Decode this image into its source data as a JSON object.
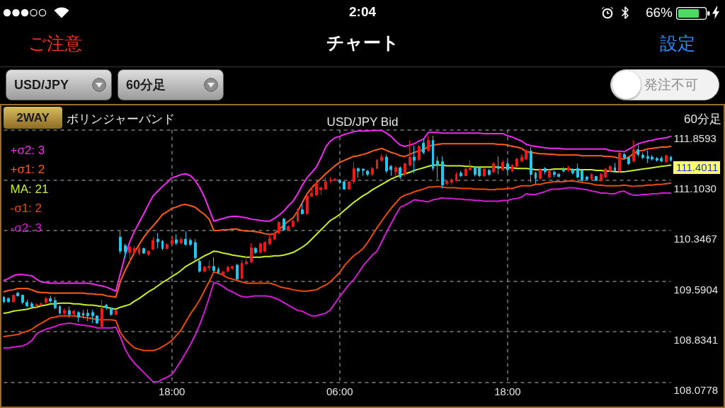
{
  "chart_data": {
    "type": "candlestick",
    "title": "USD/JPY Bid",
    "annotations": [
      "2:04",
      "66%",
      "ご注意",
      "チャート",
      "設定",
      "USD/JPY",
      "60分足",
      "発注不可",
      "2WAY",
      "ボリンジャーバンド",
      "60分足",
      "111.4011"
    ],
    "categories": [
      null,
      null,
      null,
      null,
      null,
      null,
      null,
      null,
      null,
      null,
      null,
      null,
      null,
      null,
      null,
      null,
      null,
      null,
      null,
      null,
      null,
      null,
      null,
      null,
      null,
      null,
      null,
      null,
      null,
      null,
      null,
      null,
      null,
      null,
      null,
      null,
      "18:00",
      null,
      null,
      null,
      null,
      null,
      null,
      null,
      null,
      null,
      null,
      null,
      null,
      null,
      null,
      null,
      null,
      null,
      null,
      null,
      null,
      null,
      null,
      null,
      null,
      null,
      null,
      null,
      null,
      null,
      null,
      null,
      null,
      null,
      null,
      null,
      "06:00",
      null,
      null,
      null,
      null,
      null,
      null,
      null,
      null,
      null,
      null,
      null,
      null,
      null,
      null,
      null,
      null,
      null,
      null,
      null,
      null,
      null,
      null,
      null,
      null,
      null,
      null,
      null,
      null,
      null,
      null,
      null,
      null,
      null,
      null,
      null,
      "18:00",
      null,
      null,
      null,
      null,
      null,
      null,
      null,
      null,
      null,
      null,
      null,
      null,
      null,
      null,
      null,
      null,
      null,
      null,
      null,
      null,
      null,
      null,
      null,
      null,
      null,
      null,
      null,
      null,
      null,
      null,
      null,
      null,
      null,
      null,
      null
    ],
    "ohlc": [
      [
        109.35,
        109.37,
        109.26,
        109.28
      ],
      [
        109.33,
        109.35,
        109.27,
        109.28
      ],
      [
        109.28,
        109.39,
        109.27,
        109.38
      ],
      [
        109.41,
        109.43,
        109.36,
        109.37
      ],
      [
        109.38,
        109.39,
        109.24,
        109.27
      ],
      [
        109.27,
        109.31,
        109.2,
        109.22
      ],
      [
        109.25,
        109.28,
        109.2,
        109.21
      ],
      [
        109.22,
        109.26,
        109.19,
        109.24
      ],
      [
        109.23,
        109.27,
        109.22,
        109.25
      ],
      [
        109.27,
        109.35,
        109.25,
        109.33
      ],
      [
        109.33,
        109.37,
        109.27,
        109.29
      ],
      [
        109.3,
        109.35,
        109.17,
        109.19
      ],
      [
        109.21,
        109.23,
        109.09,
        109.11
      ],
      [
        109.11,
        109.18,
        109.08,
        109.15
      ],
      [
        109.15,
        109.21,
        109.04,
        109.09
      ],
      [
        109.1,
        109.16,
        109.07,
        109.14
      ],
      [
        109.12,
        109.14,
        108.98,
        109.05
      ],
      [
        109.11,
        109.16,
        109.03,
        109.08
      ],
      [
        109.11,
        109.17,
        108.99,
        109.07
      ],
      [
        109.12,
        109.16,
        108.96,
        109.07
      ],
      [
        109.07,
        109.08,
        108.95,
        108.96
      ],
      [
        108.91,
        109.31,
        108.89,
        109.18
      ],
      [
        109.23,
        109.25,
        109.16,
        109.19
      ],
      [
        109.19,
        109.2,
        109.07,
        109.09
      ],
      [
        109.09,
        109.17,
        109.08,
        109.15
      ],
      [
        110.25,
        110.34,
        110.0,
        110.04
      ],
      [
        110.12,
        110.15,
        109.93,
        110.03
      ],
      [
        110.02,
        110.13,
        109.85,
        110.1
      ],
      [
        110.02,
        110.12,
        109.98,
        110.08
      ],
      [
        110.01,
        110.11,
        109.98,
        110.08
      ],
      [
        110.08,
        110.09,
        110.0,
        110.01
      ],
      [
        109.99,
        110.05,
        109.97,
        110.04
      ],
      [
        110.07,
        110.25,
        110.05,
        110.2
      ],
      [
        110.22,
        110.31,
        110.08,
        110.18
      ],
      [
        110.19,
        110.21,
        110.05,
        110.08
      ],
      [
        110.08,
        110.16,
        110.06,
        110.14
      ],
      [
        110.15,
        110.26,
        110.14,
        110.2
      ],
      [
        110.21,
        110.29,
        110.13,
        110.16
      ],
      [
        110.16,
        110.25,
        110.14,
        110.22
      ],
      [
        110.22,
        110.34,
        110.12,
        110.14
      ],
      [
        110.2,
        110.23,
        110.12,
        110.14
      ],
      [
        110.17,
        110.22,
        109.91,
        109.94
      ],
      [
        109.89,
        109.93,
        109.72,
        109.74
      ],
      [
        109.74,
        109.82,
        109.72,
        109.8
      ],
      [
        109.79,
        109.9,
        109.75,
        109.81
      ],
      [
        109.81,
        109.95,
        109.73,
        109.75
      ],
      [
        109.77,
        109.8,
        109.7,
        109.72
      ],
      [
        109.69,
        109.74,
        109.67,
        109.73
      ],
      [
        109.74,
        109.82,
        109.72,
        109.8
      ],
      [
        109.78,
        109.82,
        109.76,
        109.81
      ],
      [
        109.83,
        109.85,
        109.61,
        109.62
      ],
      [
        109.63,
        109.91,
        109.62,
        109.86
      ],
      [
        109.85,
        109.96,
        109.83,
        109.88
      ],
      [
        109.88,
        110.16,
        109.86,
        110.09
      ],
      [
        110.08,
        110.1,
        110.0,
        110.02
      ],
      [
        110.02,
        110.17,
        110.0,
        110.15
      ],
      [
        110.04,
        110.19,
        110.02,
        110.17
      ],
      [
        110.15,
        110.29,
        110.13,
        110.23
      ],
      [
        110.22,
        110.33,
        110.2,
        110.31
      ],
      [
        110.31,
        110.49,
        110.29,
        110.47
      ],
      [
        110.52,
        110.54,
        110.34,
        110.36
      ],
      [
        110.36,
        110.43,
        110.34,
        110.41
      ],
      [
        110.41,
        110.51,
        110.39,
        110.49
      ],
      [
        110.49,
        110.68,
        110.47,
        110.66
      ],
      [
        110.66,
        110.76,
        110.59,
        110.6
      ],
      [
        110.6,
        110.89,
        110.58,
        110.87
      ],
      [
        110.86,
        111.01,
        110.85,
        110.91
      ],
      [
        110.88,
        111.08,
        110.87,
        111.05
      ],
      [
        110.96,
        111.01,
        110.88,
        110.99
      ],
      [
        110.97,
        111.15,
        110.96,
        111.08
      ],
      [
        111.09,
        111.15,
        111.06,
        111.1
      ],
      [
        111.1,
        111.13,
        111.09,
        111.12
      ],
      [
        111.1,
        111.12,
        111.05,
        111.07
      ],
      [
        111.08,
        111.09,
        110.96,
        110.97
      ],
      [
        110.97,
        111.09,
        110.96,
        111.08
      ],
      [
        111.08,
        111.38,
        111.05,
        111.28
      ],
      [
        111.28,
        111.29,
        111.14,
        111.24
      ],
      [
        111.27,
        111.28,
        111.17,
        111.25
      ],
      [
        111.24,
        111.26,
        111.16,
        111.19
      ],
      [
        111.19,
        111.3,
        111.16,
        111.28
      ],
      [
        111.28,
        111.42,
        111.27,
        111.4
      ],
      [
        111.4,
        111.49,
        111.38,
        111.45
      ],
      [
        111.45,
        111.49,
        111.21,
        111.24
      ],
      [
        111.31,
        111.33,
        111.17,
        111.26
      ],
      [
        111.23,
        111.31,
        111.17,
        111.29
      ],
      [
        111.29,
        111.31,
        111.12,
        111.15
      ],
      [
        111.19,
        111.37,
        111.16,
        111.35
      ],
      [
        111.33,
        111.7,
        111.31,
        111.45
      ],
      [
        111.45,
        111.62,
        111.21,
        111.4
      ],
      [
        111.41,
        111.63,
        111.39,
        111.61
      ],
      [
        111.66,
        111.72,
        111.49,
        111.52
      ],
      [
        111.55,
        111.77,
        111.53,
        111.7
      ],
      [
        111.7,
        111.77,
        111.24,
        111.28
      ],
      [
        111.39,
        111.46,
        111.12,
        111.33
      ],
      [
        111.38,
        111.46,
        110.98,
        111.03
      ],
      [
        111.05,
        111.11,
        111.02,
        111.09
      ],
      [
        111.07,
        111.13,
        111.03,
        111.11
      ],
      [
        111.09,
        111.22,
        111.08,
        111.19
      ],
      [
        111.21,
        111.24,
        111.15,
        111.17
      ],
      [
        111.17,
        111.29,
        111.16,
        111.27
      ],
      [
        111.26,
        111.4,
        111.24,
        111.29
      ],
      [
        111.3,
        111.31,
        111.16,
        111.19
      ],
      [
        111.29,
        111.31,
        111.15,
        111.17
      ],
      [
        111.17,
        111.29,
        111.15,
        111.27
      ],
      [
        111.25,
        111.27,
        111.17,
        111.19
      ],
      [
        111.23,
        111.37,
        111.21,
        111.35
      ],
      [
        111.31,
        111.46,
        111.19,
        111.28
      ],
      [
        111.26,
        111.4,
        111.24,
        111.37
      ],
      [
        111.35,
        111.39,
        111.22,
        111.26
      ],
      [
        111.24,
        111.35,
        111.22,
        111.33
      ],
      [
        111.31,
        111.44,
        111.29,
        111.42
      ],
      [
        111.39,
        111.49,
        111.37,
        111.45
      ],
      [
        111.42,
        111.57,
        111.4,
        111.55
      ],
      [
        111.54,
        111.6,
        111.07,
        111.19
      ],
      [
        111.21,
        111.23,
        111.05,
        111.13
      ],
      [
        111.13,
        111.28,
        111.11,
        111.26
      ],
      [
        111.28,
        111.3,
        111.19,
        111.23
      ],
      [
        111.15,
        111.27,
        111.12,
        111.24
      ],
      [
        111.22,
        111.25,
        111.15,
        111.19
      ],
      [
        111.19,
        111.21,
        111.14,
        111.16
      ],
      [
        111.27,
        111.3,
        111.22,
        111.24
      ],
      [
        111.25,
        111.32,
        111.23,
        111.29
      ],
      [
        111.26,
        111.28,
        111.19,
        111.21
      ],
      [
        111.28,
        111.35,
        111.13,
        111.15
      ],
      [
        111.25,
        111.26,
        111.08,
        111.1
      ],
      [
        111.15,
        111.17,
        111.1,
        111.12
      ],
      [
        111.12,
        111.21,
        111.1,
        111.19
      ],
      [
        111.16,
        111.17,
        111.09,
        111.1
      ],
      [
        111.1,
        111.21,
        111.08,
        111.19
      ],
      [
        111.15,
        111.29,
        111.13,
        111.27
      ],
      [
        111.24,
        111.33,
        111.22,
        111.31
      ],
      [
        111.29,
        111.36,
        111.22,
        111.24
      ],
      [
        111.24,
        111.53,
        111.22,
        111.51
      ],
      [
        111.49,
        111.51,
        111.42,
        111.44
      ],
      [
        111.44,
        111.46,
        111.33,
        111.35
      ],
      [
        111.39,
        111.7,
        111.37,
        111.56
      ],
      [
        111.56,
        111.64,
        111.45,
        111.49
      ],
      [
        111.48,
        111.52,
        111.42,
        111.44
      ],
      [
        111.46,
        111.55,
        111.36,
        111.43
      ],
      [
        111.45,
        111.48,
        111.4,
        111.42
      ],
      [
        111.43,
        111.45,
        111.38,
        111.4
      ],
      [
        111.43,
        111.46,
        111.37,
        111.39
      ],
      [
        111.38,
        111.49,
        111.36,
        111.47
      ],
      [
        111.45,
        111.47,
        111.38,
        111.4
      ]
    ],
    "colors": [
      "#20c8f0",
      "#20c8f0",
      "#f01818",
      "#20c8f0",
      "#20c8f0",
      "#20c8f0",
      "#20c8f0",
      "#f01818",
      "#f01818",
      "#f01818",
      "#20c8f0",
      "#20c8f0",
      "#20c8f0",
      "#f01818",
      "#20c8f0",
      "#f01818",
      "#20c8f0",
      "#20c8f0",
      "#20c8f0",
      "#20c8f0",
      "#20c8f0",
      "#f01818",
      "#20c8f0",
      "#20c8f0",
      "#f01818",
      "#20c8f0",
      "#20c8f0",
      "#f01818",
      "#f01818",
      "#f01818",
      "#20c8f0",
      "#f01818",
      "#f01818",
      "#20c8f0",
      "#20c8f0",
      "#f01818",
      "#f01818",
      "#20c8f0",
      "#f01818",
      "#20c8f0",
      "#20c8f0",
      "#20c8f0",
      "#20c8f0",
      "#f01818",
      "#f01818",
      "#20c8f0",
      "#20c8f0",
      "#f01818",
      "#f01818",
      "#f01818",
      "#20c8f0",
      "#f01818",
      "#f01818",
      "#f01818",
      "#20c8f0",
      "#f01818",
      "#f01818",
      "#f01818",
      "#f01818",
      "#f01818",
      "#20c8f0",
      "#f01818",
      "#f01818",
      "#f01818",
      "#20c8f0",
      "#f01818",
      "#f01818",
      "#f01818",
      "#f01818",
      "#f01818",
      "#f01818",
      "#f01818",
      "#20c8f0",
      "#20c8f0",
      "#f01818",
      "#f01818",
      "#20c8f0",
      "#20c8f0",
      "#20c8f0",
      "#f01818",
      "#f01818",
      "#f01818",
      "#20c8f0",
      "#20c8f0",
      "#f01818",
      "#20c8f0",
      "#f01818",
      "#f01818",
      "#20c8f0",
      "#f01818",
      "#20c8f0",
      "#f01818",
      "#20c8f0",
      "#20c8f0",
      "#20c8f0",
      "#f01818",
      "#f01818",
      "#f01818",
      "#20c8f0",
      "#f01818",
      "#f01818",
      "#20c8f0",
      "#20c8f0",
      "#f01818",
      "#20c8f0",
      "#f01818",
      "#20c8f0",
      "#f01818",
      "#20c8f0",
      "#f01818",
      "#f01818",
      "#f01818",
      "#f01818",
      "#20c8f0",
      "#20c8f0",
      "#f01818",
      "#20c8f0",
      "#f01818",
      "#20c8f0",
      "#20c8f0",
      "#20c8f0",
      "#f01818",
      "#20c8f0",
      "#20c8f0",
      "#20c8f0",
      "#20c8f0",
      "#f01818",
      "#20c8f0",
      "#f01818",
      "#f01818",
      "#f01818",
      "#20c8f0",
      "#f01818",
      "#20c8f0",
      "#20c8f0",
      "#f01818",
      "#20c8f0",
      "#20c8f0",
      "#20c8f0",
      "#20c8f0",
      "#20c8f0",
      "#20c8f0",
      "#f01818",
      "#20c8f0"
    ],
    "series": [
      {
        "type": "line",
        "name": "+σ2: 3",
        "color": "#f22af2",
        "values": [
          109.6,
          109.63,
          109.67,
          109.69,
          109.69,
          109.68,
          109.67,
          109.62,
          109.58,
          109.57,
          109.56,
          109.56,
          109.56,
          109.56,
          109.56,
          109.56,
          109.56,
          109.56,
          109.56,
          109.55,
          109.53,
          109.52,
          109.5,
          109.47,
          109.44,
          109.71,
          109.98,
          110.18,
          110.34,
          110.47,
          110.6,
          110.74,
          110.87,
          110.94,
          111.01,
          111.07,
          111.14,
          111.16,
          111.19,
          111.2,
          111.17,
          111.1,
          110.99,
          110.85,
          110.67,
          110.49,
          110.51,
          110.53,
          110.55,
          110.56,
          110.56,
          110.55,
          110.54,
          110.52,
          110.51,
          110.5,
          110.49,
          110.49,
          110.53,
          110.58,
          110.64,
          110.72,
          110.79,
          110.9,
          111.03,
          111.14,
          111.22,
          111.3,
          111.44,
          111.6,
          111.69,
          111.74,
          111.76,
          111.79,
          111.81,
          111.83,
          111.84,
          111.84,
          111.84,
          111.85,
          111.85,
          111.85,
          111.81,
          111.76,
          111.69,
          111.63,
          111.61,
          111.63,
          111.65,
          111.69,
          111.72,
          111.82,
          111.82,
          111.82,
          111.81,
          111.81,
          111.81,
          111.81,
          111.81,
          111.81,
          111.81,
          111.81,
          111.81,
          111.8,
          111.8,
          111.8,
          111.8,
          111.8,
          111.77,
          111.75,
          111.72,
          111.69,
          111.64,
          111.62,
          111.61,
          111.6,
          111.59,
          111.58,
          111.58,
          111.58,
          111.57,
          111.57,
          111.57,
          111.57,
          111.57,
          111.57,
          111.57,
          111.57,
          111.57,
          111.57,
          111.55,
          111.54,
          111.54,
          111.53,
          111.57,
          111.61,
          111.65,
          111.67,
          111.69,
          111.7,
          111.72,
          111.73,
          111.74,
          111.76
        ]
      },
      {
        "type": "line",
        "name": "+σ1: 2",
        "color": "#ff5c18",
        "values": [
          109.43,
          109.45,
          109.46,
          109.48,
          109.48,
          109.48,
          109.46,
          109.43,
          109.42,
          109.42,
          109.41,
          109.41,
          109.41,
          109.41,
          109.41,
          109.41,
          109.41,
          109.41,
          109.4,
          109.4,
          109.39,
          109.39,
          109.37,
          109.36,
          109.35,
          109.59,
          109.75,
          109.89,
          110.02,
          110.14,
          110.25,
          110.34,
          110.42,
          110.5,
          110.59,
          110.63,
          110.68,
          110.7,
          110.73,
          110.74,
          110.72,
          110.7,
          110.64,
          110.59,
          110.52,
          110.35,
          110.35,
          110.36,
          110.36,
          110.37,
          110.37,
          110.35,
          110.34,
          110.34,
          110.33,
          110.32,
          110.3,
          110.29,
          110.3,
          110.36,
          110.43,
          110.49,
          110.54,
          110.64,
          110.77,
          110.9,
          110.99,
          111.06,
          111.13,
          111.2,
          111.26,
          111.32,
          111.37,
          111.4,
          111.43,
          111.46,
          111.47,
          111.49,
          111.51,
          111.54,
          111.56,
          111.58,
          111.55,
          111.52,
          111.5,
          111.47,
          111.46,
          111.49,
          111.52,
          111.54,
          111.56,
          111.61,
          111.63,
          111.64,
          111.65,
          111.65,
          111.65,
          111.65,
          111.65,
          111.65,
          111.65,
          111.65,
          111.65,
          111.65,
          111.65,
          111.65,
          111.64,
          111.64,
          111.63,
          111.61,
          111.6,
          111.58,
          111.53,
          111.52,
          111.51,
          111.5,
          111.5,
          111.49,
          111.49,
          111.48,
          111.48,
          111.48,
          111.48,
          111.48,
          111.47,
          111.47,
          111.47,
          111.47,
          111.47,
          111.46,
          111.46,
          111.45,
          111.43,
          111.42,
          111.45,
          111.5,
          111.54,
          111.55,
          111.57,
          111.58,
          111.59,
          111.6,
          111.6,
          111.61
        ]
      },
      {
        "type": "line",
        "name": "MA: 21",
        "color": "#c8f028",
        "values": [
          109.11,
          109.12,
          109.14,
          109.15,
          109.16,
          109.17,
          109.19,
          109.2,
          109.22,
          109.23,
          109.25,
          109.25,
          109.26,
          109.26,
          109.26,
          109.25,
          109.25,
          109.24,
          109.23,
          109.23,
          109.22,
          109.21,
          109.2,
          109.18,
          109.17,
          109.2,
          109.22,
          109.24,
          109.29,
          109.33,
          109.38,
          109.43,
          109.47,
          109.52,
          109.57,
          109.61,
          109.66,
          109.7,
          109.75,
          109.81,
          109.85,
          109.89,
          109.93,
          109.97,
          110.0,
          110.04,
          110.03,
          110.01,
          110.0,
          109.98,
          109.97,
          109.96,
          109.95,
          109.95,
          109.95,
          109.95,
          109.96,
          109.96,
          109.97,
          109.97,
          109.98,
          110.0,
          110.02,
          110.06,
          110.1,
          110.15,
          110.22,
          110.29,
          110.36,
          110.43,
          110.5,
          110.54,
          110.59,
          110.65,
          110.71,
          110.77,
          110.82,
          110.87,
          110.91,
          110.96,
          111.0,
          111.04,
          111.08,
          111.12,
          111.15,
          111.18,
          111.2,
          111.22,
          111.25,
          111.27,
          111.29,
          111.31,
          111.33,
          111.33,
          111.33,
          111.32,
          111.32,
          111.32,
          111.32,
          111.31,
          111.31,
          111.3,
          111.3,
          111.3,
          111.3,
          111.3,
          111.3,
          111.29,
          111.29,
          111.29,
          111.28,
          111.28,
          111.28,
          111.27,
          111.26,
          111.26,
          111.26,
          111.26,
          111.27,
          111.27,
          111.27,
          111.27,
          111.26,
          111.26,
          111.26,
          111.26,
          111.26,
          111.25,
          111.25,
          111.24,
          111.24,
          111.23,
          111.23,
          111.23,
          111.24,
          111.25,
          111.26,
          111.27,
          111.28,
          111.29,
          111.3,
          111.31,
          111.32,
          111.33
        ]
      },
      {
        "type": "line",
        "name": "-σ1: 2",
        "color": "#ec4a0c",
        "values": [
          108.76,
          108.77,
          108.78,
          108.79,
          108.82,
          108.84,
          108.87,
          108.92,
          108.96,
          109.0,
          109.04,
          109.05,
          109.07,
          109.07,
          109.07,
          109.07,
          109.06,
          109.05,
          109.04,
          109.03,
          109.01,
          109.01,
          109.01,
          109.01,
          109.0,
          108.82,
          108.72,
          108.65,
          108.59,
          108.57,
          108.55,
          108.55,
          108.55,
          108.57,
          108.61,
          108.65,
          108.7,
          108.78,
          108.86,
          108.98,
          109.1,
          109.2,
          109.31,
          109.45,
          109.58,
          109.73,
          109.71,
          109.68,
          109.64,
          109.62,
          109.6,
          109.58,
          109.56,
          109.56,
          109.56,
          109.56,
          109.56,
          109.56,
          109.54,
          109.51,
          109.49,
          109.48,
          109.46,
          109.45,
          109.44,
          109.44,
          109.45,
          109.46,
          109.5,
          109.53,
          109.58,
          109.65,
          109.72,
          109.82,
          109.9,
          109.97,
          110.02,
          110.08,
          110.17,
          110.28,
          110.39,
          110.49,
          110.59,
          110.68,
          110.76,
          110.84,
          110.88,
          110.9,
          110.93,
          110.95,
          110.97,
          111.0,
          111.0,
          111.01,
          111.0,
          110.99,
          110.99,
          110.99,
          110.98,
          110.98,
          110.98,
          110.97,
          110.97,
          110.97,
          110.96,
          110.96,
          110.97,
          110.97,
          110.98,
          110.98,
          111.0,
          111.02,
          111.02,
          111.02,
          111.04,
          111.04,
          111.06,
          111.07,
          111.08,
          111.08,
          111.08,
          111.09,
          111.09,
          111.08,
          111.07,
          111.06,
          111.05,
          111.03,
          111.03,
          111.02,
          111.02,
          111.02,
          111.02,
          111.03,
          111.02,
          111.01,
          111.02,
          111.02,
          111.03,
          111.03,
          111.04,
          111.04,
          111.05,
          111.06
        ]
      },
      {
        "type": "line",
        "name": "-σ2: 3",
        "color": "#d41cd4",
        "values": [
          108.59,
          108.59,
          108.6,
          108.61,
          108.62,
          108.65,
          108.7,
          108.8,
          108.84,
          108.87,
          108.89,
          108.91,
          108.94,
          108.95,
          108.96,
          108.95,
          108.94,
          108.93,
          108.92,
          108.91,
          108.89,
          108.89,
          108.89,
          108.89,
          108.9,
          108.75,
          108.57,
          108.45,
          108.36,
          108.29,
          108.22,
          108.15,
          108.08,
          108.08,
          108.12,
          108.15,
          108.19,
          108.29,
          108.4,
          108.52,
          108.64,
          108.78,
          108.94,
          109.13,
          109.34,
          109.57,
          109.55,
          109.51,
          109.46,
          109.43,
          109.39,
          109.36,
          109.35,
          109.36,
          109.37,
          109.37,
          109.37,
          109.36,
          109.34,
          109.31,
          109.27,
          109.23,
          109.19,
          109.15,
          109.14,
          109.1,
          109.07,
          109.07,
          109.09,
          109.11,
          109.16,
          109.26,
          109.36,
          109.45,
          109.54,
          109.61,
          109.71,
          109.82,
          109.9,
          109.98,
          110.04,
          110.18,
          110.32,
          110.45,
          110.58,
          110.7,
          110.73,
          110.77,
          110.81,
          110.8,
          110.79,
          110.78,
          110.81,
          110.82,
          110.84,
          110.83,
          110.83,
          110.82,
          110.82,
          110.81,
          110.81,
          110.8,
          110.8,
          110.79,
          110.79,
          110.79,
          110.79,
          110.8,
          110.8,
          110.82,
          110.83,
          110.85,
          110.9,
          110.89,
          110.89,
          110.91,
          110.93,
          110.96,
          110.97,
          110.97,
          110.98,
          110.99,
          110.99,
          110.98,
          110.97,
          110.96,
          110.94,
          110.93,
          110.91,
          110.91,
          110.9,
          110.9,
          110.93,
          110.94,
          110.9,
          110.88,
          110.88,
          110.89,
          110.89,
          110.9,
          110.9,
          110.91,
          110.91,
          110.91
        ]
      }
    ],
    "ylim": [
      108.0778,
      111.8593
    ],
    "yticks": [
      108.0778,
      108.8341,
      109.5904,
      110.3467,
      {
        "value": 111.103,
        "label": "111.1030"
      },
      111.8593
    ],
    "grid": true,
    "legend": "top left",
    "marker": "none",
    "line_style": "solid"
  }
}
